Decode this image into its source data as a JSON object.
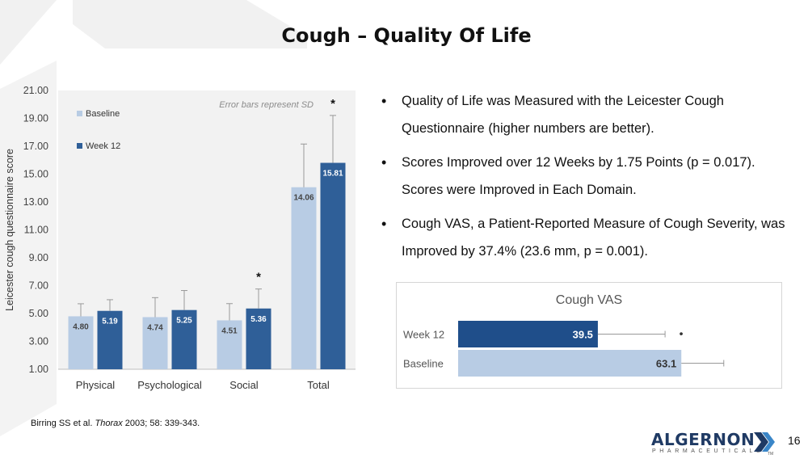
{
  "title": "Cough – Quality Of Life",
  "bullets": [
    "Quality of Life was Measured with the Leicester Cough Questionnaire (higher numbers are better).",
    "Scores Improved over 12 Weeks by 1.75 Points (p = 0.017). Scores were Improved in Each Domain.",
    "Cough VAS, a Patient-Reported Measure of Cough Severity, was Improved by 37.4% (23.6 mm, p = 0.001)."
  ],
  "bullet_symbol": "•",
  "citation": {
    "before": "Birring SS et al. ",
    "journal": "Thorax",
    "after": " 2003; 58: 339-343."
  },
  "logo": {
    "name": "ALGERNON",
    "sub": "PHARMACEUTICALS",
    "tm": "TM"
  },
  "page_number": "16",
  "colors": {
    "baseline": "#b8cce4",
    "week12": "#2f5f98",
    "week12_vas": "#1f4e8a",
    "text": "#111111"
  },
  "chart_data": [
    {
      "type": "bar",
      "categories": [
        "Physical",
        "Psychological",
        "Social",
        "Total"
      ],
      "series": [
        {
          "name": "Baseline",
          "values": [
            4.8,
            4.74,
            4.51,
            14.06
          ],
          "sd": [
            0.9,
            1.4,
            1.2,
            3.1
          ]
        },
        {
          "name": "Week 12",
          "values": [
            5.19,
            5.25,
            5.36,
            15.81
          ],
          "sd": [
            0.8,
            1.4,
            1.4,
            3.4
          ]
        }
      ],
      "value_labels": [
        [
          "4.80",
          "4.74",
          "4.51",
          "14.06"
        ],
        [
          "5.19",
          "5.25",
          "5.36",
          "15.81"
        ]
      ],
      "significance": [
        "",
        "",
        "*",
        "*"
      ],
      "ylabel": "Leicester cough questionnaire score",
      "ylim": [
        1,
        21
      ],
      "yticks": [
        "1.00",
        "3.00",
        "5.00",
        "7.00",
        "9.00",
        "11.00",
        "13.00",
        "15.00",
        "17.00",
        "19.00",
        "21.00"
      ],
      "annotation": "Error bars represent SD",
      "legend": "top-left",
      "grid": false
    },
    {
      "type": "bar",
      "orientation": "horizontal",
      "title": "Cough VAS",
      "categories": [
        "Week 12",
        "Baseline"
      ],
      "values": [
        39.5,
        63.1
      ],
      "value_labels": [
        "39.5",
        "63.1"
      ],
      "sd": [
        19,
        12
      ],
      "significance": [
        "•",
        ""
      ],
      "xlim": [
        0,
        90
      ]
    }
  ]
}
